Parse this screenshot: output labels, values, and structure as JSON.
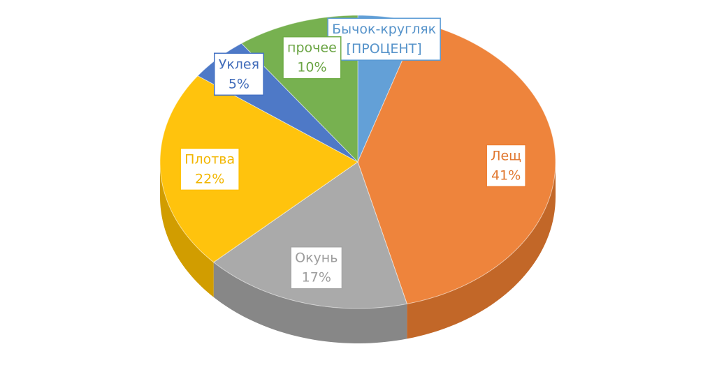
{
  "chart_data": {
    "type": "pie",
    "categories": [
      "Бычок-кругляк",
      "Лещ",
      "Окунь",
      "Плотва",
      "Уклея",
      "прочее"
    ],
    "values": [
      5,
      41,
      17,
      22,
      5,
      10
    ],
    "value_labels": [
      "[ПРОЦЕНТ]",
      "41%",
      "17%",
      "22%",
      "5%",
      "10%"
    ],
    "colors": [
      "#5b9bd5",
      "#ed7d31",
      "#a5a5a5",
      "#ffc000",
      "#4472c4",
      "#70ad47"
    ]
  }
}
